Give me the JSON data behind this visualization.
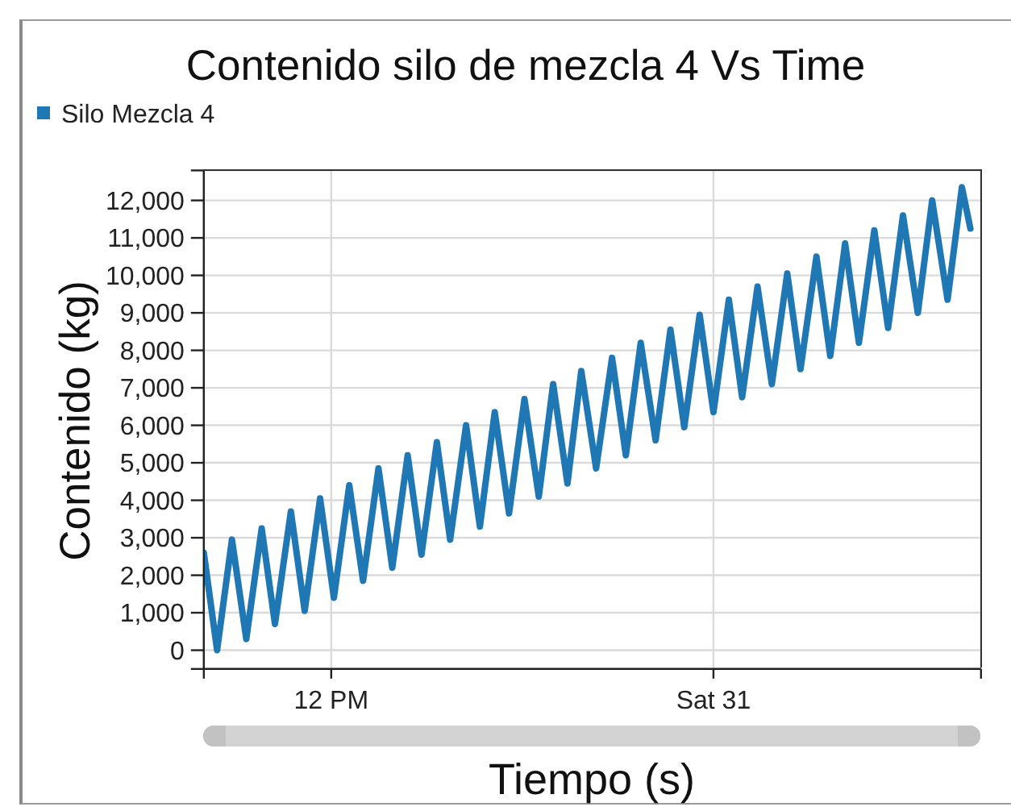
{
  "chart_data": {
    "type": "line",
    "title": "Contenido silo de mezcla 4 Vs Time",
    "xlabel": "Tiempo (s)",
    "ylabel": "Contenido (kg)",
    "x": [
      "--10-30T08:00",
      "--10-30T08:25",
      "--10-30T08:53",
      "--10-30T09:20",
      "--10-30T09:49",
      "--10-30T10:14",
      "--10-30T10:44",
      "--10-30T11:10",
      "--10-30T11:39",
      "--10-30T12:05",
      "--10-30T12:34",
      "--10-30T13:00",
      "--10-30T13:29",
      "--10-30T13:55",
      "--10-30T14:24",
      "--10-30T14:50",
      "--10-30T15:19",
      "--10-30T15:44",
      "--10-30T16:14",
      "--10-30T16:40",
      "--10-30T17:08",
      "--10-30T17:35",
      "--10-30T18:04",
      "--10-30T18:31",
      "--10-30T18:58",
      "--10-30T19:25",
      "--10-30T19:51",
      "--10-30T20:19",
      "--10-30T20:49",
      "--10-30T21:15",
      "--10-30T21:43",
      "--10-30T22:11",
      "--10-30T22:39",
      "--10-30T23:05",
      "--10-30T23:34",
      "--10-31T00:00",
      "--10-31T00:29",
      "--10-31T00:54",
      "--10-31T01:23",
      "--10-31T01:50",
      "--10-31T02:19",
      "--10-31T02:44",
      "--10-31T03:14",
      "--10-31T03:40",
      "--10-31T04:08",
      "--10-31T04:34",
      "--10-31T05:03",
      "--10-31T05:29",
      "--10-31T05:57",
      "--10-31T06:25",
      "--10-31T06:52",
      "--10-31T07:21",
      "--10-31T07:48",
      "--10-31T08:04"
    ],
    "series": [
      {
        "name": "Silo Mezcla 4",
        "color": "#1f77b4",
        "values": [
          2600,
          0,
          2950,
          300,
          3250,
          700,
          3700,
          1050,
          4050,
          1400,
          4400,
          1850,
          4850,
          2200,
          5200,
          2550,
          5550,
          2950,
          6000,
          3300,
          6350,
          3650,
          6700,
          4100,
          7100,
          4450,
          7450,
          4850,
          7800,
          5200,
          8200,
          5600,
          8550,
          5950,
          8950,
          6350,
          9350,
          6750,
          9700,
          7100,
          10050,
          7500,
          10500,
          7850,
          10850,
          8200,
          11200,
          8600,
          11600,
          9000,
          12000,
          9350,
          12350,
          11250
        ]
      }
    ],
    "xlim": [
      "--10-30T08:00",
      "--10-31T08:24"
    ],
    "xticks": [
      {
        "value": "--10-30T08:00",
        "label": null
      },
      {
        "value": "--10-30T12:00",
        "label": "12 PM"
      },
      {
        "value": "--10-31T00:00",
        "label": "Sat 31"
      },
      {
        "value": "--10-31T08:24",
        "label": null
      }
    ],
    "ylim": [
      -500,
      12800
    ],
    "yticks": [
      {
        "value": -500,
        "label": null
      },
      0,
      {
        "value": 1000,
        "label": "1,000"
      },
      {
        "value": 2000,
        "label": "2,000"
      },
      {
        "value": 3000,
        "label": "3,000"
      },
      {
        "value": 4000,
        "label": "4,000"
      },
      {
        "value": 5000,
        "label": "5,000"
      },
      {
        "value": 6000,
        "label": "6,000"
      },
      {
        "value": 7000,
        "label": "7,000"
      },
      {
        "value": 8000,
        "label": "8,000"
      },
      {
        "value": 9000,
        "label": "9,000"
      },
      {
        "value": 10000,
        "label": "10,000"
      },
      {
        "value": 11000,
        "label": "11,000"
      },
      {
        "value": 12000,
        "label": "12,000"
      },
      {
        "value": 12800,
        "label": null
      }
    ],
    "grid": true,
    "legend": "top left",
    "line_style": "solid"
  }
}
